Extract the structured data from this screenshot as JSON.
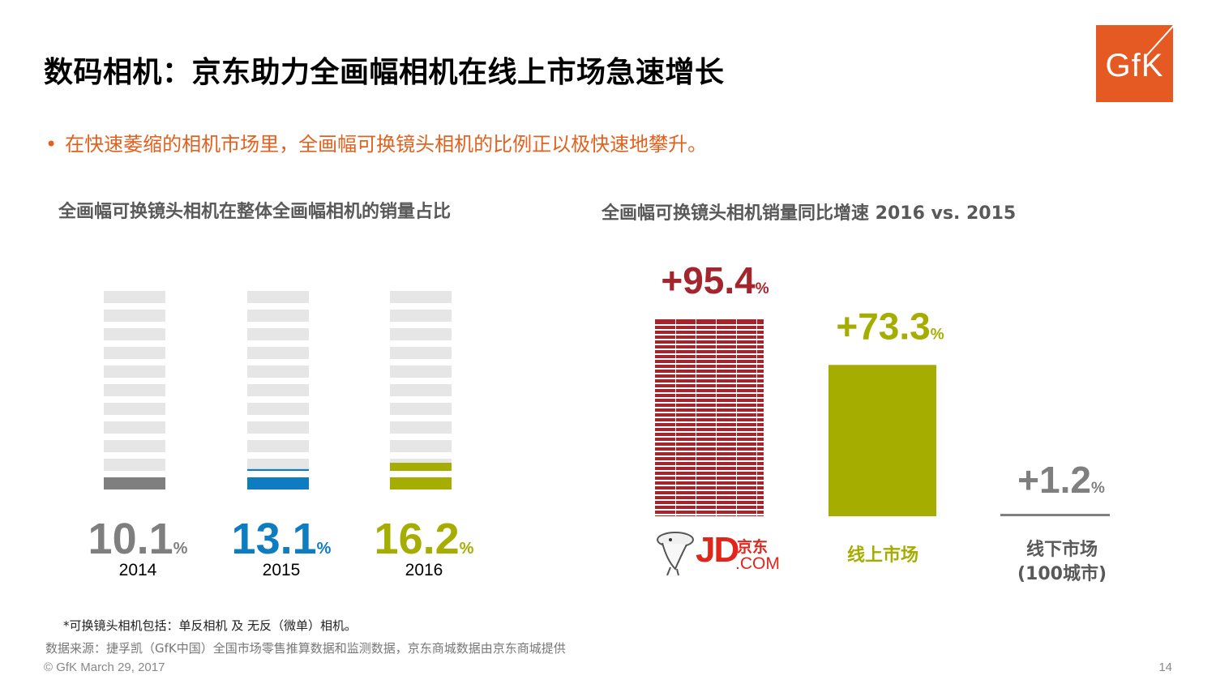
{
  "header": {
    "title": "数码相机：京东助力全画幅相机在线上市场急速增长",
    "logo_text": "GfK"
  },
  "bullet": {
    "symbol": "•",
    "text": "在快速萎缩的相机市场里，全画幅可换镜头相机的比例正以极快速地攀升。"
  },
  "chart_data": [
    {
      "type": "bar",
      "title": "全画幅可换镜头相机在整体全画幅相机的销量占比",
      "categories": [
        "2014",
        "2015",
        "2016"
      ],
      "values": [
        10.1,
        13.1,
        16.2
      ],
      "value_labels": [
        "10.1",
        "13.1",
        "16.2"
      ],
      "unit": "%",
      "ylim": [
        0,
        100
      ],
      "colors": [
        "#7f7f7f",
        "#0e7cc1",
        "#a4ad00"
      ],
      "background_color": "#e6e6e6"
    },
    {
      "type": "bar",
      "title": "全画幅可换镜头相机销量同比增速 2016 vs. 2015",
      "categories": [
        "JD.COM",
        "线上市场",
        "线下市场\n(100城市)"
      ],
      "values": [
        95.4,
        73.3,
        1.2
      ],
      "value_labels": [
        "+95.4",
        "+73.3",
        "+1.2"
      ],
      "unit": "%",
      "ylim": [
        0,
        100
      ],
      "colors": [
        "#a3262e",
        "#a4ad00",
        "#7f7f7f"
      ],
      "label_colors": [
        "#a3262e",
        "#a4ad00",
        "#7f7f7f"
      ]
    }
  ],
  "right_chart_labels": {
    "jd_text": "JD",
    "jd_cn": "京东",
    "jd_com": ".COM",
    "online": "线上市场",
    "offline_line1": "线下市场",
    "offline_line2": "(100城市)"
  },
  "footer": {
    "footnote": "*可换镜头相机包括：单反相机 及 无反（微单）相机。",
    "source": "数据来源：捷孚凯（GfK中国）全国市场零售推算数据和监测数据，京东商城数据由京东商城提供",
    "copyright": "© GfK March 29, 2017",
    "page_number": "14"
  }
}
